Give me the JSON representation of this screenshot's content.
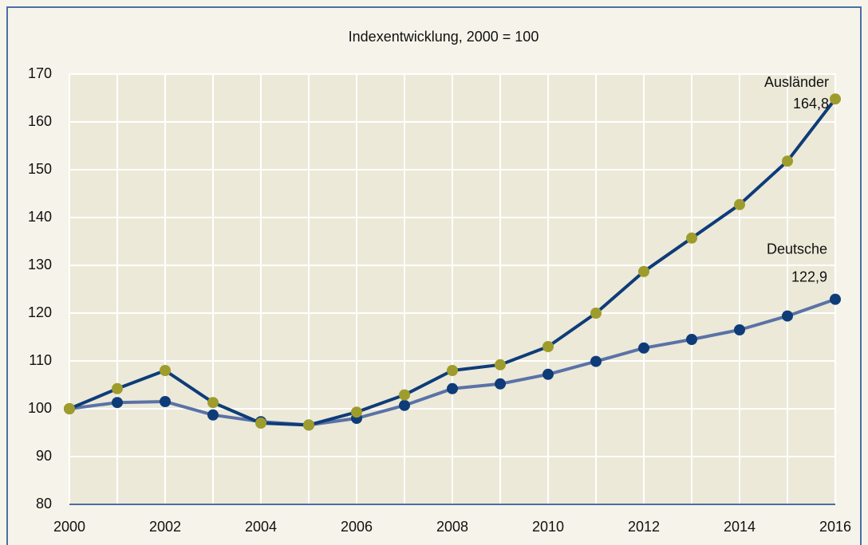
{
  "chart_data": {
    "type": "line",
    "title": "Indexentwicklung, 2000 = 100",
    "x": [
      2000,
      2001,
      2002,
      2003,
      2004,
      2005,
      2006,
      2007,
      2008,
      2009,
      2010,
      2011,
      2012,
      2013,
      2014,
      2015,
      2016
    ],
    "series": [
      {
        "name": "Ausländer",
        "color": "#0e3c78",
        "marker_color": "#9e9c2c",
        "values": [
          100,
          104.2,
          108,
          101.3,
          97,
          96.6,
          99.3,
          102.9,
          108,
          109.2,
          113,
          120,
          128.7,
          135.7,
          142.7,
          151.8,
          164.8
        ],
        "value_labels": [
          null,
          null,
          null,
          null,
          null,
          null,
          null,
          null,
          null,
          null,
          null,
          null,
          null,
          null,
          null,
          null,
          "164,8"
        ]
      },
      {
        "name": "Deutsche",
        "color": "#5a72a6",
        "marker_color": "#0e3c78",
        "values": [
          100,
          101.3,
          101.5,
          98.7,
          97.3,
          96.6,
          98,
          100.7,
          104.2,
          105.2,
          107.2,
          109.9,
          112.7,
          114.5,
          116.5,
          119.4,
          122.9
        ],
        "value_labels": [
          null,
          null,
          null,
          null,
          null,
          null,
          null,
          null,
          null,
          null,
          null,
          null,
          null,
          null,
          null,
          null,
          "122,9"
        ]
      }
    ],
    "xlim": [
      2000,
      2016
    ],
    "xticks": [
      2000,
      2002,
      2004,
      2006,
      2008,
      2010,
      2012,
      2014,
      2016
    ],
    "ylim": [
      80,
      170
    ],
    "yticks": [
      80,
      90,
      100,
      110,
      120,
      130,
      140,
      150,
      160,
      170
    ],
    "grid": true
  }
}
